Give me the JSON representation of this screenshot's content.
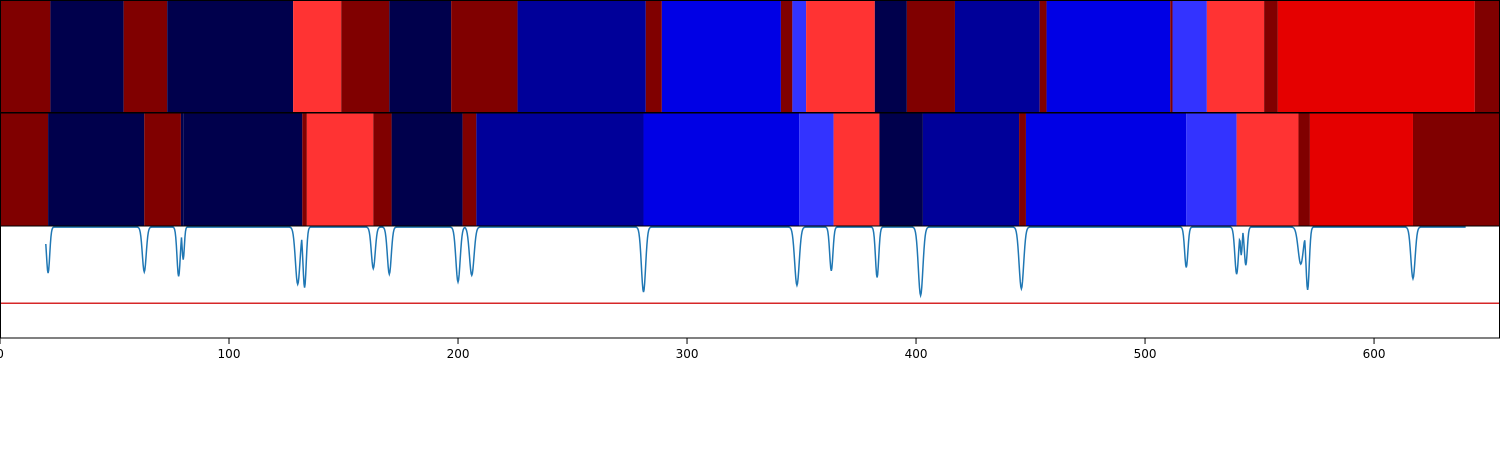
{
  "chart_data": [
    {
      "type": "heatmap",
      "panel": "segmentation-track-1",
      "xlim": [
        0,
        655
      ],
      "segments": [
        {
          "start": 0,
          "end": 22,
          "color": "#800000"
        },
        {
          "start": 22,
          "end": 54,
          "color": "#00004c"
        },
        {
          "start": 54,
          "end": 73,
          "color": "#800000"
        },
        {
          "start": 73,
          "end": 128,
          "color": "#00004c"
        },
        {
          "start": 128,
          "end": 149,
          "color": "#ff3333"
        },
        {
          "start": 149,
          "end": 170,
          "color": "#800000"
        },
        {
          "start": 170,
          "end": 197,
          "color": "#00004c"
        },
        {
          "start": 197,
          "end": 226,
          "color": "#800000"
        },
        {
          "start": 226,
          "end": 282,
          "color": "#000099"
        },
        {
          "start": 282,
          "end": 289,
          "color": "#800000"
        },
        {
          "start": 289,
          "end": 341,
          "color": "#0000e5"
        },
        {
          "start": 341,
          "end": 346,
          "color": "#800000"
        },
        {
          "start": 346,
          "end": 352,
          "color": "#3333ff"
        },
        {
          "start": 352,
          "end": 382,
          "color": "#ff3333"
        },
        {
          "start": 382,
          "end": 396,
          "color": "#00004c"
        },
        {
          "start": 396,
          "end": 417,
          "color": "#800000"
        },
        {
          "start": 417,
          "end": 454,
          "color": "#000099"
        },
        {
          "start": 454,
          "end": 457,
          "color": "#800000"
        },
        {
          "start": 457,
          "end": 511,
          "color": "#0000e5"
        },
        {
          "start": 511,
          "end": 512,
          "color": "#800000"
        },
        {
          "start": 512,
          "end": 527,
          "color": "#3333ff"
        },
        {
          "start": 527,
          "end": 552,
          "color": "#ff3333"
        },
        {
          "start": 552,
          "end": 558,
          "color": "#800000"
        },
        {
          "start": 558,
          "end": 644,
          "color": "#e50000"
        },
        {
          "start": 644,
          "end": 655,
          "color": "#800000"
        }
      ]
    },
    {
      "type": "heatmap",
      "panel": "segmentation-track-2",
      "xlim": [
        0,
        655
      ],
      "segments": [
        {
          "start": 0,
          "end": 21,
          "color": "#800000"
        },
        {
          "start": 21,
          "end": 63,
          "color": "#00004c"
        },
        {
          "start": 63,
          "end": 79,
          "color": "#800000"
        },
        {
          "start": 79,
          "end": 80,
          "color": "#00004c"
        },
        {
          "start": 80,
          "end": 132,
          "color": "#00004c"
        },
        {
          "start": 132,
          "end": 134,
          "color": "#800000"
        },
        {
          "start": 134,
          "end": 163,
          "color": "#ff3333"
        },
        {
          "start": 163,
          "end": 171,
          "color": "#800000"
        },
        {
          "start": 171,
          "end": 202,
          "color": "#00004c"
        },
        {
          "start": 202,
          "end": 208,
          "color": "#800000"
        },
        {
          "start": 208,
          "end": 281,
          "color": "#000099"
        },
        {
          "start": 281,
          "end": 349,
          "color": "#0000e5"
        },
        {
          "start": 349,
          "end": 364,
          "color": "#3333ff"
        },
        {
          "start": 364,
          "end": 384,
          "color": "#ff3333"
        },
        {
          "start": 384,
          "end": 403,
          "color": "#00004c"
        },
        {
          "start": 403,
          "end": 445,
          "color": "#000099"
        },
        {
          "start": 445,
          "end": 448,
          "color": "#800000"
        },
        {
          "start": 448,
          "end": 518,
          "color": "#0000e5"
        },
        {
          "start": 518,
          "end": 540,
          "color": "#3333ff"
        },
        {
          "start": 540,
          "end": 567,
          "color": "#ff3333"
        },
        {
          "start": 567,
          "end": 572,
          "color": "#800000"
        },
        {
          "start": 572,
          "end": 617,
          "color": "#e50000"
        },
        {
          "start": 617,
          "end": 655,
          "color": "#800000"
        }
      ]
    },
    {
      "type": "line",
      "panel": "probability-track",
      "xlim": [
        0,
        655
      ],
      "ylim": [
        0,
        1
      ],
      "xticks": [
        "0",
        "100",
        "200",
        "300",
        "400",
        "500",
        "600"
      ],
      "xtick_values": [
        0,
        100,
        200,
        300,
        400,
        500,
        600
      ],
      "threshold": 0.31,
      "baseline": 0.99,
      "line_color": "#1f77b4",
      "threshold_color": "#d62728",
      "line_range": [
        20,
        640
      ],
      "dips": [
        {
          "x": 21,
          "y": 0.58,
          "w": 1.0
        },
        {
          "x": 63,
          "y": 0.59,
          "w": 1.2
        },
        {
          "x": 78,
          "y": 0.55,
          "w": 1.0
        },
        {
          "x": 80,
          "y": 0.7,
          "w": 0.7
        },
        {
          "x": 130,
          "y": 0.48,
          "w": 1.4
        },
        {
          "x": 133,
          "y": 0.45,
          "w": 1.0
        },
        {
          "x": 163,
          "y": 0.62,
          "w": 1.2
        },
        {
          "x": 170,
          "y": 0.57,
          "w": 1.2
        },
        {
          "x": 200,
          "y": 0.5,
          "w": 1.3
        },
        {
          "x": 206,
          "y": 0.56,
          "w": 1.4
        },
        {
          "x": 281,
          "y": 0.41,
          "w": 1.3
        },
        {
          "x": 348,
          "y": 0.47,
          "w": 1.4
        },
        {
          "x": 363,
          "y": 0.6,
          "w": 1.0
        },
        {
          "x": 383,
          "y": 0.54,
          "w": 1.0
        },
        {
          "x": 402,
          "y": 0.38,
          "w": 1.4
        },
        {
          "x": 446,
          "y": 0.44,
          "w": 1.4
        },
        {
          "x": 518,
          "y": 0.63,
          "w": 1.0
        },
        {
          "x": 540,
          "y": 0.57,
          "w": 1.1
        },
        {
          "x": 542,
          "y": 0.74,
          "w": 0.6
        },
        {
          "x": 544,
          "y": 0.65,
          "w": 0.9
        },
        {
          "x": 568,
          "y": 0.66,
          "w": 1.6
        },
        {
          "x": 571,
          "y": 0.43,
          "w": 1.0
        },
        {
          "x": 617,
          "y": 0.53,
          "w": 1.3
        }
      ]
    }
  ]
}
